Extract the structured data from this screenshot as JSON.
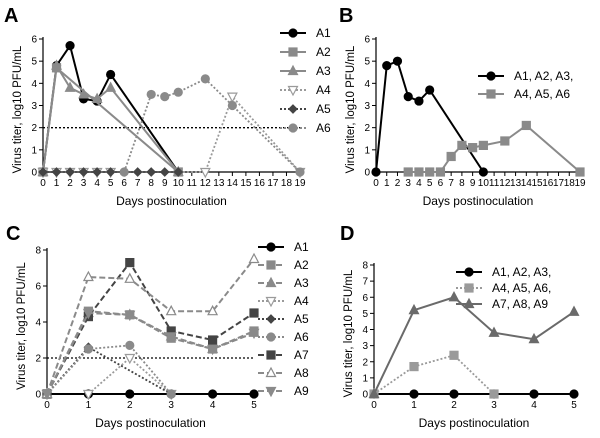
{
  "figure": {
    "background": "#ffffff",
    "colors": {
      "black": "#000000",
      "gray": "#8a8a8a",
      "dark": "#444444"
    }
  },
  "chart_data": [
    {
      "panel": "A",
      "type": "line",
      "xlabel": "Days postinoculation",
      "ylabel": "Virus titer, log10 PFU/mL",
      "xlim": [
        0,
        19
      ],
      "ylim": [
        0,
        6
      ],
      "xticks": [
        0,
        1,
        2,
        3,
        4,
        5,
        6,
        7,
        8,
        9,
        10,
        11,
        12,
        13,
        14,
        15,
        16,
        17,
        18,
        19
      ],
      "yticks": [
        0,
        1,
        2,
        3,
        4,
        5,
        6
      ],
      "threshold": 2,
      "legend": "right",
      "series": [
        {
          "name": "A1",
          "color": "#000000",
          "marker": "circle",
          "dash": "solid",
          "points": [
            [
              0,
              0
            ],
            [
              1,
              4.8
            ],
            [
              2,
              5.7
            ],
            [
              3,
              3.3
            ],
            [
              4,
              3.2
            ],
            [
              5,
              4.4
            ],
            [
              10,
              0
            ]
          ]
        },
        {
          "name": "A2",
          "color": "#8a8a8a",
          "marker": "square",
          "dash": "solid",
          "points": [
            [
              0,
              0
            ],
            [
              1,
              4.7
            ],
            [
              10,
              0
            ]
          ]
        },
        {
          "name": "A3",
          "color": "#8a8a8a",
          "marker": "triangle",
          "dash": "solid",
          "points": [
            [
              0,
              0
            ],
            [
              1,
              4.8
            ],
            [
              2,
              3.8
            ],
            [
              3,
              3.5
            ],
            [
              4,
              3.3
            ],
            [
              5,
              3.8
            ],
            [
              10,
              0
            ]
          ]
        },
        {
          "name": "A4",
          "color": "#9a9a9a",
          "marker": "triangle-down-open",
          "dash": "dot",
          "points": [
            [
              0,
              0
            ],
            [
              1,
              0
            ],
            [
              2,
              0
            ],
            [
              3,
              0
            ],
            [
              4,
              0
            ],
            [
              5,
              0
            ],
            [
              12,
              0
            ],
            [
              14,
              3.4
            ],
            [
              19,
              0
            ]
          ]
        },
        {
          "name": "A5",
          "color": "#444444",
          "marker": "diamond",
          "dash": "dot",
          "points": [
            [
              0,
              0
            ],
            [
              1,
              0
            ],
            [
              2,
              0
            ],
            [
              3,
              0
            ],
            [
              4,
              0
            ],
            [
              5,
              0
            ],
            [
              6,
              0
            ],
            [
              7,
              0
            ],
            [
              8,
              0
            ],
            [
              9,
              0
            ],
            [
              10,
              0
            ]
          ]
        },
        {
          "name": "A6",
          "color": "#8a8a8a",
          "marker": "circle",
          "dash": "dot",
          "points": [
            [
              6,
              0
            ],
            [
              8,
              3.5
            ],
            [
              9,
              3.4
            ],
            [
              10,
              3.6
            ],
            [
              12,
              4.2
            ],
            [
              14,
              3.0
            ],
            [
              19,
              0
            ]
          ]
        }
      ]
    },
    {
      "panel": "B",
      "type": "line",
      "xlabel": "Days postinoculation",
      "ylabel": "Virus titer, log10 PFU/mL",
      "xlim": [
        0,
        19
      ],
      "ylim": [
        0,
        6
      ],
      "xticks": [
        0,
        1,
        2,
        3,
        4,
        5,
        6,
        7,
        8,
        9,
        10,
        11,
        12,
        13,
        14,
        15,
        16,
        17,
        18,
        19
      ],
      "yticks": [
        0,
        1,
        2,
        3,
        4,
        5,
        6
      ],
      "legend": "right",
      "series": [
        {
          "name": "A1, A2, A3,",
          "color": "#000000",
          "marker": "circle",
          "dash": "solid",
          "points": [
            [
              0,
              0
            ],
            [
              1,
              4.8
            ],
            [
              2,
              5.0
            ],
            [
              3,
              3.4
            ],
            [
              4,
              3.2
            ],
            [
              5,
              3.7
            ],
            [
              10,
              0
            ]
          ]
        },
        {
          "name": "A4, A5, A6",
          "color": "#8a8a8a",
          "marker": "square",
          "dash": "solid",
          "points": [
            [
              3,
              0
            ],
            [
              4,
              0
            ],
            [
              5,
              0
            ],
            [
              6,
              0
            ],
            [
              7,
              0.7
            ],
            [
              8,
              1.2
            ],
            [
              9,
              1.1
            ],
            [
              10,
              1.2
            ],
            [
              12,
              1.4
            ],
            [
              14,
              2.1
            ],
            [
              19,
              0
            ]
          ]
        }
      ]
    },
    {
      "panel": "C",
      "type": "line",
      "xlabel": "Days postinoculation",
      "ylabel": "Virus titer, log10 PFU/mL",
      "xlim": [
        0,
        5
      ],
      "ylim": [
        0,
        8
      ],
      "xticks": [
        0,
        1,
        2,
        3,
        4,
        5
      ],
      "yticks": [
        0,
        2,
        4,
        6,
        8
      ],
      "threshold": 2,
      "legend": "right",
      "series": [
        {
          "name": "A1",
          "color": "#000000",
          "marker": "circle",
          "dash": "solid",
          "points": [
            [
              0,
              0
            ],
            [
              1,
              0
            ],
            [
              2,
              0
            ],
            [
              3,
              0
            ],
            [
              4,
              0
            ],
            [
              5,
              0
            ]
          ]
        },
        {
          "name": "A2",
          "color": "#8a8a8a",
          "marker": "square",
          "dash": "dash",
          "points": [
            [
              0,
              0
            ],
            [
              1,
              4.6
            ],
            [
              2,
              4.4
            ],
            [
              3,
              3.1
            ],
            [
              4,
              2.5
            ],
            [
              5,
              3.5
            ]
          ]
        },
        {
          "name": "A3",
          "color": "#8a8a8a",
          "marker": "triangle",
          "dash": "dash",
          "points": [
            [
              0,
              0
            ],
            [
              1,
              4.5
            ],
            [
              2,
              4.4
            ],
            [
              3,
              3.2
            ],
            [
              4,
              2.5
            ],
            [
              5,
              3.4
            ]
          ]
        },
        {
          "name": "A4",
          "color": "#9a9a9a",
          "marker": "triangle-down-open",
          "dash": "dot",
          "points": [
            [
              1,
              0
            ],
            [
              2,
              2.0
            ],
            [
              3,
              0
            ]
          ]
        },
        {
          "name": "A5",
          "color": "#444444",
          "marker": "diamond",
          "dash": "dot",
          "points": [
            [
              0,
              0
            ],
            [
              1,
              2.6
            ],
            [
              3,
              0
            ]
          ]
        },
        {
          "name": "A6",
          "color": "#8a8a8a",
          "marker": "circle",
          "dash": "dot",
          "points": [
            [
              0,
              0
            ],
            [
              1,
              2.5
            ],
            [
              2,
              2.7
            ],
            [
              3,
              0
            ]
          ]
        },
        {
          "name": "A7",
          "color": "#444444",
          "marker": "square",
          "dash": "dash",
          "points": [
            [
              0,
              0
            ],
            [
              1,
              4.3
            ],
            [
              2,
              7.3
            ],
            [
              3,
              3.5
            ],
            [
              4,
              3.0
            ],
            [
              5,
              4.5
            ]
          ]
        },
        {
          "name": "A8",
          "color": "#8a8a8a",
          "marker": "triangle-open",
          "dash": "dash",
          "points": [
            [
              0,
              0
            ],
            [
              1,
              6.5
            ],
            [
              2,
              6.4
            ],
            [
              3,
              4.6
            ],
            [
              4,
              4.6
            ],
            [
              5,
              7.5
            ]
          ]
        },
        {
          "name": "A9",
          "color": "#8a8a8a",
          "marker": "triangle-down",
          "dash": "dash",
          "points": [
            [
              0,
              0
            ],
            [
              1,
              4.5
            ],
            [
              2,
              4.4
            ],
            [
              3,
              3.2
            ],
            [
              4,
              2.5
            ],
            [
              5,
              3.4
            ]
          ]
        }
      ]
    },
    {
      "panel": "D",
      "type": "line",
      "xlabel": "Days postinoculation",
      "ylabel": "Virus titer, log10 PFU/mL",
      "xlim": [
        0,
        5
      ],
      "ylim": [
        0,
        8
      ],
      "xticks": [
        0,
        1,
        2,
        3,
        4,
        5
      ],
      "yticks": [
        0,
        1,
        2,
        3,
        4,
        5,
        6,
        7,
        8
      ],
      "legend": "top-right",
      "series": [
        {
          "name": "A1, A2, A3,",
          "color": "#000000",
          "marker": "circle",
          "dash": "solid",
          "points": [
            [
              0,
              0
            ],
            [
              1,
              0
            ],
            [
              2,
              0
            ],
            [
              3,
              0
            ],
            [
              4,
              0
            ],
            [
              5,
              0
            ]
          ]
        },
        {
          "name": "A4, A5, A6,",
          "color": "#9a9a9a",
          "marker": "square",
          "dash": "dot",
          "points": [
            [
              0,
              0
            ],
            [
              1,
              1.7
            ],
            [
              2,
              2.4
            ],
            [
              3,
              0
            ]
          ]
        },
        {
          "name": "A7, A8, A9",
          "color": "#6a6a6a",
          "marker": "triangle",
          "dash": "solid",
          "points": [
            [
              0,
              0
            ],
            [
              1,
              5.2
            ],
            [
              2,
              6.0
            ],
            [
              3,
              3.8
            ],
            [
              4,
              3.4
            ],
            [
              5,
              5.1
            ]
          ]
        }
      ]
    }
  ]
}
